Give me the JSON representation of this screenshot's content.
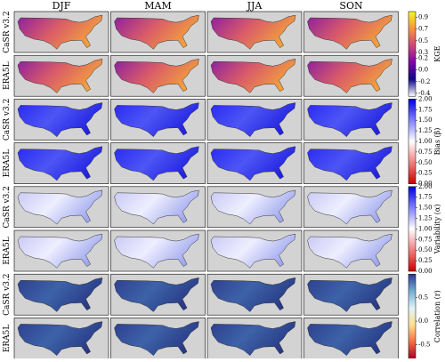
{
  "columns": [
    "DJF",
    "MAM",
    "JJA",
    "SON"
  ],
  "rows": [
    "CaSR v3.2",
    "ERA5L",
    "CaSR v3.2",
    "ERA5L",
    "CaSR v3.2",
    "ERA5L",
    "CaSR v3.2",
    "ERA5L"
  ],
  "colorbars": [
    {
      "label": "KGE",
      "lim": [
        -0.45,
        1.0
      ],
      "ticks": [
        0.9,
        0.7,
        0.5,
        0.3,
        0.2,
        {
          "value": 0,
          "label": "0.0"
        },
        -0.2,
        -0.4
      ],
      "colors": [
        "#ffffff",
        "#0d0887",
        "#7e03a8",
        "#cc4778",
        "#f89540",
        "#f0f921"
      ],
      "map_colors": [
        "#8a1fa0",
        "#d85a6a",
        "#f3a03c"
      ]
    },
    {
      "label": "Bias (β)",
      "lim": [
        0,
        2
      ],
      "ticks": [
        {
          "value": 2,
          "label": "2.00"
        },
        1.75,
        {
          "value": 1.5,
          "label": "1.50"
        },
        1.25,
        {
          "value": 1,
          "label": "1.00"
        },
        0.75,
        {
          "value": 0.5,
          "label": "0.50"
        },
        0.25,
        {
          "value": 0,
          "label": "0.00"
        }
      ],
      "colors": [
        "#cc0000",
        "#f08080",
        "#ffffff",
        "#8080ff",
        "#0000dd"
      ],
      "map_colors": [
        "#2a2af0",
        "#4d55f5",
        "#2222e0"
      ]
    },
    {
      "label": "Variability (α)",
      "lim": [
        0,
        2
      ],
      "ticks": [
        {
          "value": 2,
          "label": "2.00"
        },
        1.75,
        {
          "value": 1.5,
          "label": "1.50"
        },
        1.25,
        {
          "value": 1,
          "label": "1.00"
        },
        0.75,
        {
          "value": 0.5,
          "label": "0.50"
        },
        0.25,
        {
          "value": 0,
          "label": "0.00"
        }
      ],
      "colors": [
        "#cc0000",
        "#f08080",
        "#ffffff",
        "#8080ff",
        "#0000dd"
      ],
      "map_colors": [
        "#c8c8f5",
        "#eeeeff",
        "#9fa8ef"
      ]
    },
    {
      "label": "Correlation (r)",
      "lim": [
        -0.8,
        1.0
      ],
      "ticks": [
        0.5,
        {
          "value": 0,
          "label": "0.0"
        },
        -0.5
      ],
      "colors": [
        "#a50026",
        "#f46d43",
        "#fee090",
        "#e0f3f8",
        "#74add1",
        "#313695"
      ],
      "map_colors": [
        "#2e3f8f",
        "#3d62a8",
        "#283a86"
      ]
    }
  ]
}
